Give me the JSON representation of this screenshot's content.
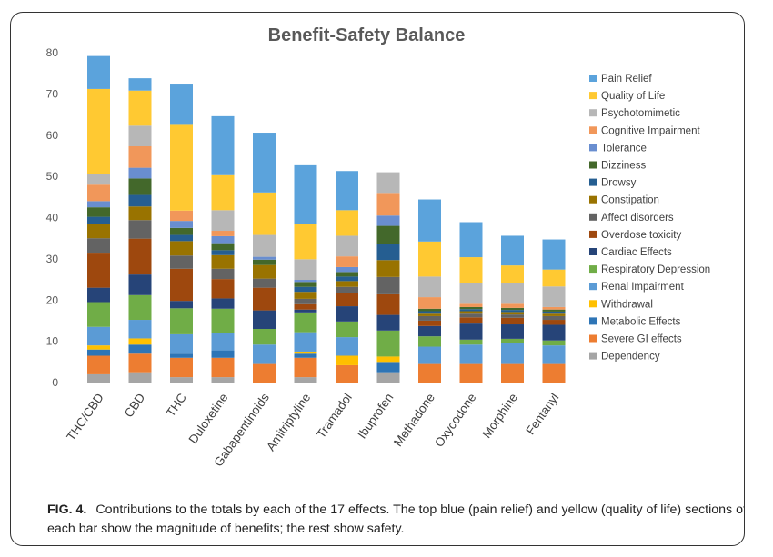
{
  "caption": {
    "label": "FIG. 4.",
    "text": "Contributions to the totals by each of the 17 effects. The top blue (pain relief) and yellow (quality of life) sections of each bar show the magnitude of benefits; the rest show safety."
  },
  "chart_data": {
    "type": "bar",
    "stacked": true,
    "title": "Benefit-Safety Balance",
    "xlabel": "",
    "ylabel": "",
    "ylim": [
      0,
      80
    ],
    "yticks": [
      0,
      10,
      20,
      30,
      40,
      50,
      60,
      70,
      80
    ],
    "grid": false,
    "legend_position": "right",
    "categories": [
      "THC/CBD",
      "CBD",
      "THC",
      "Duloxetine",
      "Gabapentinoids",
      "Amitriptyline",
      "Tramadol",
      "Ibuprofen",
      "Methadone",
      "Oxycodone",
      "Morphine",
      "Fentanyl"
    ],
    "series": [
      {
        "name": "Dependency",
        "color": "#a5a5a5",
        "values": [
          2,
          2.5,
          1.3,
          1.3,
          0,
          1.3,
          0,
          2.5,
          0,
          0,
          0,
          0
        ]
      },
      {
        "name": "Severe GI effects",
        "color": "#ed7d31",
        "values": [
          4.5,
          4.5,
          4.7,
          4.7,
          4.5,
          4.7,
          4.2,
          0,
          4.5,
          4.5,
          4.5,
          4.5
        ]
      },
      {
        "name": "Metabolic Effects",
        "color": "#2e75b6",
        "values": [
          1.5,
          2.2,
          1,
          1.8,
          0,
          1,
          0,
          2.5,
          0,
          0,
          0,
          0
        ]
      },
      {
        "name": "Withdrawal",
        "color": "#ffc000",
        "values": [
          1,
          1.5,
          0,
          0,
          0,
          0.5,
          2.3,
          1.3,
          0,
          0,
          0,
          0
        ]
      },
      {
        "name": "Renal Impairment",
        "color": "#5b9bd5",
        "values": [
          4.5,
          4.5,
          4.7,
          4.3,
          4.7,
          4.7,
          4.5,
          0,
          4.2,
          4.7,
          5,
          4.5
        ]
      },
      {
        "name": "Respiratory Depression",
        "color": "#70ad47",
        "values": [
          6,
          6,
          6.3,
          5.8,
          3.8,
          4.8,
          3.8,
          6.3,
          2.5,
          1.2,
          1.1,
          1.2
        ]
      },
      {
        "name": "Cardiac Effects",
        "color": "#264478",
        "values": [
          3.5,
          5,
          1.8,
          2.5,
          4.5,
          0.7,
          3.7,
          3.8,
          2.5,
          3.9,
          3.5,
          3.8
        ]
      },
      {
        "name": "Overdose toxicity",
        "color": "#9e480e",
        "values": [
          8.5,
          8.7,
          7.8,
          4.7,
          5.5,
          1.3,
          3.2,
          5,
          1.3,
          1.5,
          1.6,
          1.2
        ]
      },
      {
        "name": "Affect disorders",
        "color": "#636363",
        "values": [
          3.5,
          4.5,
          3.2,
          2.5,
          2.2,
          1.3,
          1.5,
          4.2,
          1.1,
          0.9,
          0.8,
          0.9
        ]
      },
      {
        "name": "Constipation",
        "color": "#997300",
        "values": [
          3.5,
          3.3,
          3.5,
          3.3,
          3.3,
          1.7,
          1.4,
          4.1,
          0.6,
          0.6,
          0.6,
          0.6
        ]
      },
      {
        "name": "Drowsy",
        "color": "#255e91",
        "values": [
          1.7,
          2.8,
          1.5,
          1.2,
          0,
          1.2,
          1.1,
          3.8,
          0.6,
          0.5,
          0.5,
          0.5
        ]
      },
      {
        "name": "Dizziness",
        "color": "#43682b",
        "values": [
          2.3,
          4,
          1.7,
          1.7,
          1.3,
          1.2,
          1.1,
          4.5,
          0.6,
          0.5,
          0.5,
          0.5
        ]
      },
      {
        "name": "Tolerance",
        "color": "#698ed0",
        "values": [
          1.5,
          2.6,
          1.7,
          1.7,
          0.7,
          0.5,
          1.2,
          2.5,
          0,
          0,
          0,
          0
        ]
      },
      {
        "name": "Cognitive Impairment",
        "color": "#f1975a",
        "values": [
          4,
          5.2,
          2.5,
          1.3,
          0,
          0,
          2.6,
          5.5,
          2.8,
          0.8,
          1,
          0.6
        ]
      },
      {
        "name": "Psychotomimetic",
        "color": "#b7b7b7",
        "values": [
          2.5,
          5,
          0,
          5,
          5.3,
          5,
          5,
          5,
          5,
          5,
          5,
          5
        ]
      },
      {
        "name": "Quality of Life",
        "color": "#ffc932",
        "values": [
          20.7,
          8.5,
          20.8,
          8.5,
          10.3,
          8.5,
          6.2,
          0,
          8.5,
          6.3,
          4.3,
          4.1
        ]
      },
      {
        "name": "Pain Relief",
        "color": "#5ba3dc",
        "values": [
          8,
          3,
          10,
          14.3,
          14.5,
          14.3,
          9.5,
          0,
          10.2,
          8.5,
          7.2,
          7.3
        ]
      }
    ]
  }
}
